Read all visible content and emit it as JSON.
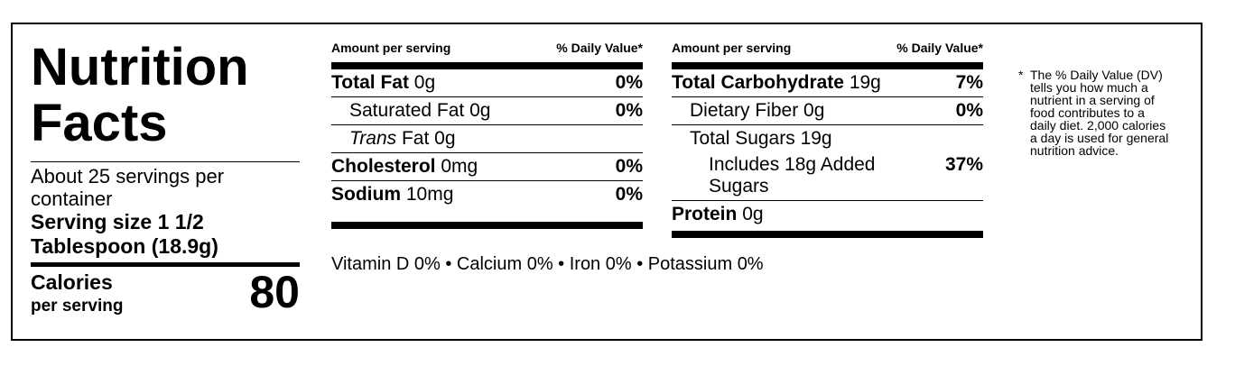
{
  "label": {
    "title_line1": "Nutrition",
    "title_line2": "Facts",
    "servings_per_container": "About 25 servings per container",
    "serving_size_line1": "Serving size 1 1/2",
    "serving_size_line2": "Tablespoon (18.9g)",
    "calories_label": "Calories",
    "calories_sub": "per serving",
    "calories_value": "80"
  },
  "table_left": {
    "header_amount": "Amount per serving",
    "header_dv": "% Daily Value*",
    "rows": [
      {
        "name": "Total Fat",
        "amount": "0g",
        "dv": "0%"
      },
      {
        "name": "Saturated Fat",
        "amount": "0g",
        "dv": "0%"
      },
      {
        "name": "Trans",
        "amount": "Fat 0g",
        "dv": ""
      },
      {
        "name": "Cholesterol",
        "amount": "0mg",
        "dv": "0%"
      },
      {
        "name": "Sodium",
        "amount": "10mg",
        "dv": "0%"
      }
    ]
  },
  "table_right": {
    "header_amount": "Amount per serving",
    "header_dv": "% Daily Value*",
    "rows": [
      {
        "name": "Total Carbohydrate",
        "amount": "19g",
        "dv": "7%"
      },
      {
        "name": "Dietary Fiber",
        "amount": "0g",
        "dv": "0%"
      },
      {
        "name": "Total Sugars",
        "amount": "19g",
        "dv": ""
      },
      {
        "name": "Includes 18g Added Sugars",
        "amount": "",
        "dv": "37%"
      },
      {
        "name": "Protein",
        "amount": "0g",
        "dv": ""
      }
    ]
  },
  "vitamins": "Vitamin D 0% • Calcium 0% • Iron 0% • Potassium 0%",
  "footnote": {
    "star": "*",
    "text": "The % Daily Value (DV) tells you how much a nutrient in a serving of food contributes to a daily diet. 2,000 calories a day is used for general nutrition advice."
  }
}
